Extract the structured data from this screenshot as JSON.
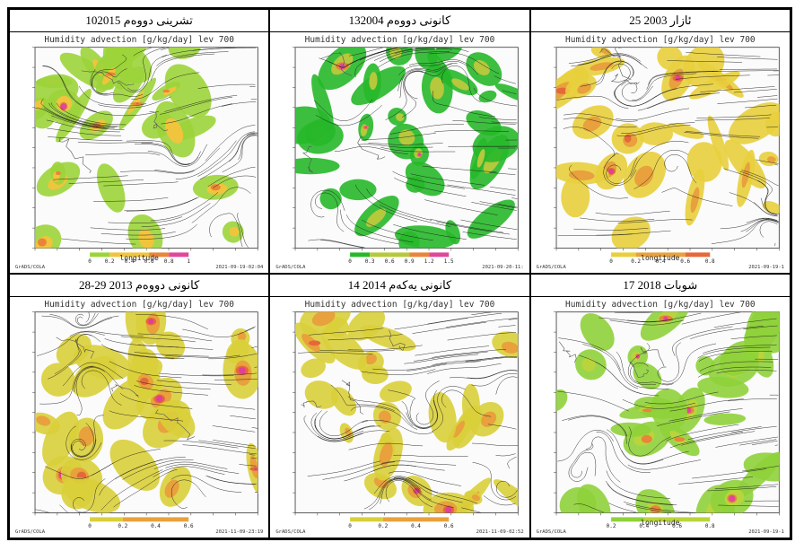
{
  "panels": [
    {
      "caption": "10تشرینی دووەم 2015",
      "title": "Humidity advection [g/kg/day] lev 700",
      "lon_label": "longitude",
      "source": "GrADS/COLA",
      "stamp": "2021-09-19-02:04",
      "colorbar": [
        "0",
        "0.2",
        "0.4",
        "0.6",
        "0.8",
        "1"
      ],
      "scheme": "green_main",
      "colors": [
        "#9cd43a",
        "#f0c43c",
        "#e8853a",
        "#e0479a"
      ]
    },
    {
      "caption": "13کانونی دووەم 2004",
      "title": "Humidity advection [g/kg/day] lev 700",
      "lon_label": "",
      "source": "GrADS/COLA",
      "stamp": "2021-09-20-11:",
      "colorbar": [
        "0",
        "0.3",
        "0.6",
        "0.9",
        "1.2",
        "1.5"
      ],
      "scheme": "bright_green",
      "colors": [
        "#27b82a",
        "#b6c83c",
        "#e8853a",
        "#e0479a"
      ]
    },
    {
      "caption": "25 ئازار 2003",
      "title": "Humidity advection [g/kg/day] lev 700",
      "lon_label": "longitude",
      "source": "GrADS/COLA",
      "stamp": "2021-09-19-1",
      "colorbar": [
        "0",
        "0.2",
        "0.4",
        "0.6",
        "0.8"
      ],
      "scheme": "yellow_main",
      "colors": [
        "#e8cf3c",
        "#e8a13c",
        "#e5683a",
        "#df3f96"
      ]
    },
    {
      "caption": "28-29 کانونی دووەم 2013",
      "title": "Humidity advection [g/kg/day] lev 700",
      "lon_label": "",
      "source": "GrADS/COLA",
      "stamp": "2021-11-09-23:19",
      "colorbar": [
        "0",
        "0.2",
        "0.4",
        "0.6"
      ],
      "scheme": "yellow_main",
      "colors": [
        "#d9cf3a",
        "#e8a13c",
        "#e5683a",
        "#df3f96"
      ]
    },
    {
      "caption": "14 کانونی یەکەم 2014",
      "title": "Humidity advection [g/kg/day] lev 700",
      "lon_label": "",
      "source": "GrADS/COLA",
      "stamp": "2021-11-09-02:52",
      "colorbar": [
        "0",
        "0.2",
        "0.4",
        "0.6"
      ],
      "scheme": "yellow_main",
      "colors": [
        "#d9cf3a",
        "#e8a13c",
        "#e5683a",
        "#df3f96"
      ]
    },
    {
      "caption": "17 شوبات 2018",
      "title": "Humidity advection [g/kg/day] lev 700",
      "lon_label": "longitude",
      "source": "GrADS/COLA",
      "stamp": "2021-09-19-1",
      "colorbar": [
        "0.2",
        "0.4",
        "0.6",
        "0.8"
      ],
      "scheme": "green_main",
      "colors": [
        "#8fd13a",
        "#b9d43c",
        "#e8853a",
        "#e0479a"
      ]
    }
  ]
}
